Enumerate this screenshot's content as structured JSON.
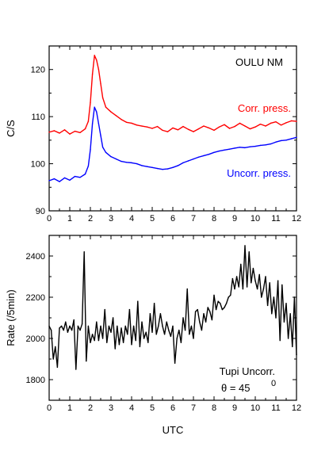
{
  "chart_data": [
    {
      "type": "line",
      "ylabel": "C/S",
      "xlim": [
        0,
        12
      ],
      "ylim": [
        90,
        125
      ],
      "x_ticks": [
        0,
        1,
        2,
        3,
        4,
        5,
        6,
        7,
        8,
        9,
        10,
        11,
        12
      ],
      "y_ticks": [
        90,
        100,
        110,
        120
      ],
      "grid": false,
      "annotations": [
        "OULU NM"
      ],
      "series": [
        {
          "name": "Corr. press.",
          "color": "#ff0000",
          "x": [
            0,
            0.25,
            0.5,
            0.75,
            1.0,
            1.25,
            1.5,
            1.75,
            1.9,
            2.0,
            2.1,
            2.2,
            2.3,
            2.4,
            2.5,
            2.6,
            2.75,
            3.0,
            3.25,
            3.5,
            3.75,
            4.0,
            4.25,
            4.5,
            4.75,
            5.0,
            5.25,
            5.5,
            5.75,
            6.0,
            6.25,
            6.5,
            6.75,
            7.0,
            7.25,
            7.5,
            7.75,
            8.0,
            8.25,
            8.5,
            8.75,
            9.0,
            9.25,
            9.5,
            9.75,
            10.0,
            10.25,
            10.5,
            10.75,
            11.0,
            11.25,
            11.5,
            11.75,
            12.0
          ],
          "values": [
            106.7,
            107.0,
            106.5,
            107.2,
            106.3,
            106.9,
            106.6,
            107.4,
            109,
            113,
            119,
            123,
            122,
            120,
            117,
            114,
            112,
            111,
            110.2,
            109.4,
            108.8,
            108.6,
            108.2,
            108.0,
            107.8,
            107.5,
            107.9,
            107.1,
            106.8,
            107.6,
            107.2,
            107.9,
            107.3,
            106.8,
            107.4,
            108.0,
            107.6,
            107.1,
            107.8,
            108.3,
            107.5,
            107.9,
            108.6,
            108.0,
            107.4,
            107.8,
            108.4,
            108.0,
            108.6,
            108.9,
            108.2,
            108.7,
            109.1,
            109.0
          ]
        },
        {
          "name": "Uncorr. press.",
          "color": "#0000ff",
          "x": [
            0,
            0.25,
            0.5,
            0.75,
            1.0,
            1.25,
            1.5,
            1.75,
            1.9,
            2.0,
            2.1,
            2.2,
            2.3,
            2.4,
            2.5,
            2.6,
            2.75,
            3.0,
            3.25,
            3.5,
            3.75,
            4.0,
            4.25,
            4.5,
            4.75,
            5.0,
            5.25,
            5.5,
            5.75,
            6.0,
            6.25,
            6.5,
            6.75,
            7.0,
            7.25,
            7.5,
            7.75,
            8.0,
            8.25,
            8.5,
            8.75,
            9.0,
            9.25,
            9.5,
            9.75,
            10.0,
            10.25,
            10.5,
            10.75,
            11.0,
            11.25,
            11.5,
            11.75,
            12.0
          ],
          "values": [
            96.4,
            96.8,
            96.2,
            97.0,
            96.5,
            97.3,
            97.1,
            97.8,
            99.5,
            103,
            108.5,
            112,
            111,
            108.5,
            106,
            103.5,
            102.4,
            101.5,
            101.0,
            100.5,
            100.3,
            100.2,
            100.0,
            99.6,
            99.4,
            99.2,
            99.0,
            98.8,
            98.9,
            99.2,
            99.6,
            100.2,
            100.6,
            101.0,
            101.4,
            101.7,
            102.0,
            102.4,
            102.7,
            102.9,
            103.1,
            103.3,
            103.5,
            103.4,
            103.6,
            103.7,
            103.9,
            104.0,
            104.2,
            104.6,
            104.9,
            105.0,
            105.3,
            105.6
          ]
        }
      ]
    },
    {
      "type": "line",
      "xlabel": "UTC",
      "ylabel": "Rate (/5min)",
      "xlim": [
        0,
        12
      ],
      "ylim": [
        1700,
        2500
      ],
      "x_ticks": [
        0,
        1,
        2,
        3,
        4,
        5,
        6,
        7,
        8,
        9,
        10,
        11,
        12
      ],
      "y_ticks": [
        1800,
        2000,
        2200,
        2400
      ],
      "grid": false,
      "annotations": [
        "Tupi Uncorr.",
        "θ = 45",
        "0"
      ],
      "series": [
        {
          "color": "#000000",
          "x": [
            0,
            0.1,
            0.2,
            0.3,
            0.4,
            0.5,
            0.6,
            0.7,
            0.8,
            0.9,
            1.0,
            1.1,
            1.2,
            1.3,
            1.4,
            1.5,
            1.6,
            1.7,
            1.8,
            1.9,
            2.0,
            2.1,
            2.2,
            2.3,
            2.4,
            2.5,
            2.6,
            2.7,
            2.8,
            2.9,
            3.0,
            3.1,
            3.2,
            3.3,
            3.4,
            3.5,
            3.6,
            3.7,
            3.8,
            3.9,
            4.0,
            4.1,
            4.2,
            4.3,
            4.4,
            4.5,
            4.6,
            4.7,
            4.8,
            4.9,
            5.0,
            5.1,
            5.2,
            5.3,
            5.4,
            5.5,
            5.6,
            5.7,
            5.8,
            5.9,
            6.0,
            6.1,
            6.2,
            6.3,
            6.4,
            6.5,
            6.6,
            6.7,
            6.8,
            6.9,
            7.0,
            7.1,
            7.2,
            7.3,
            7.4,
            7.5,
            7.6,
            7.7,
            7.8,
            7.9,
            8.0,
            8.1,
            8.2,
            8.3,
            8.4,
            8.5,
            8.6,
            8.7,
            8.8,
            8.9,
            9.0,
            9.1,
            9.2,
            9.3,
            9.4,
            9.5,
            9.6,
            9.7,
            9.8,
            9.9,
            10.0,
            10.1,
            10.2,
            10.3,
            10.4,
            10.5,
            10.6,
            10.7,
            10.8,
            10.9,
            11.0,
            11.1,
            11.2,
            11.3,
            11.4,
            11.5,
            11.6,
            11.7,
            11.8,
            11.9,
            12.0
          ],
          "values": [
            2060,
            2040,
            1900,
            1960,
            1860,
            2050,
            2060,
            2040,
            2080,
            2030,
            2060,
            2040,
            2090,
            1850,
            2060,
            2040,
            2070,
            2420,
            1890,
            2060,
            1980,
            2020,
            1990,
            2080,
            1990,
            2060,
            2000,
            2140,
            1980,
            2060,
            2030,
            2100,
            1950,
            2060,
            1970,
            2050,
            1980,
            2060,
            2020,
            2140,
            1970,
            2060,
            1990,
            2180,
            1960,
            2080,
            2000,
            2030,
            1980,
            2120,
            2030,
            2170,
            2020,
            2060,
            2120,
            2060,
            2020,
            2080,
            2040,
            2010,
            2060,
            1880,
            2000,
            2040,
            1980,
            2100,
            2040,
            2240,
            2020,
            2060,
            2000,
            2130,
            2140,
            2080,
            2040,
            2120,
            2080,
            2150,
            2130,
            2090,
            2210,
            2140,
            2180,
            2170,
            2140,
            2150,
            2170,
            2200,
            2210,
            2290,
            2240,
            2300,
            2250,
            2360,
            2240,
            2450,
            2250,
            2420,
            2270,
            2340,
            2280,
            2240,
            2310,
            2200,
            2240,
            2300,
            2160,
            2270,
            2120,
            2200,
            2100,
            2280,
            1990,
            2260,
            2080,
            2170,
            2000,
            2120,
            1960,
            2200,
            1920
          ]
        }
      ]
    }
  ]
}
